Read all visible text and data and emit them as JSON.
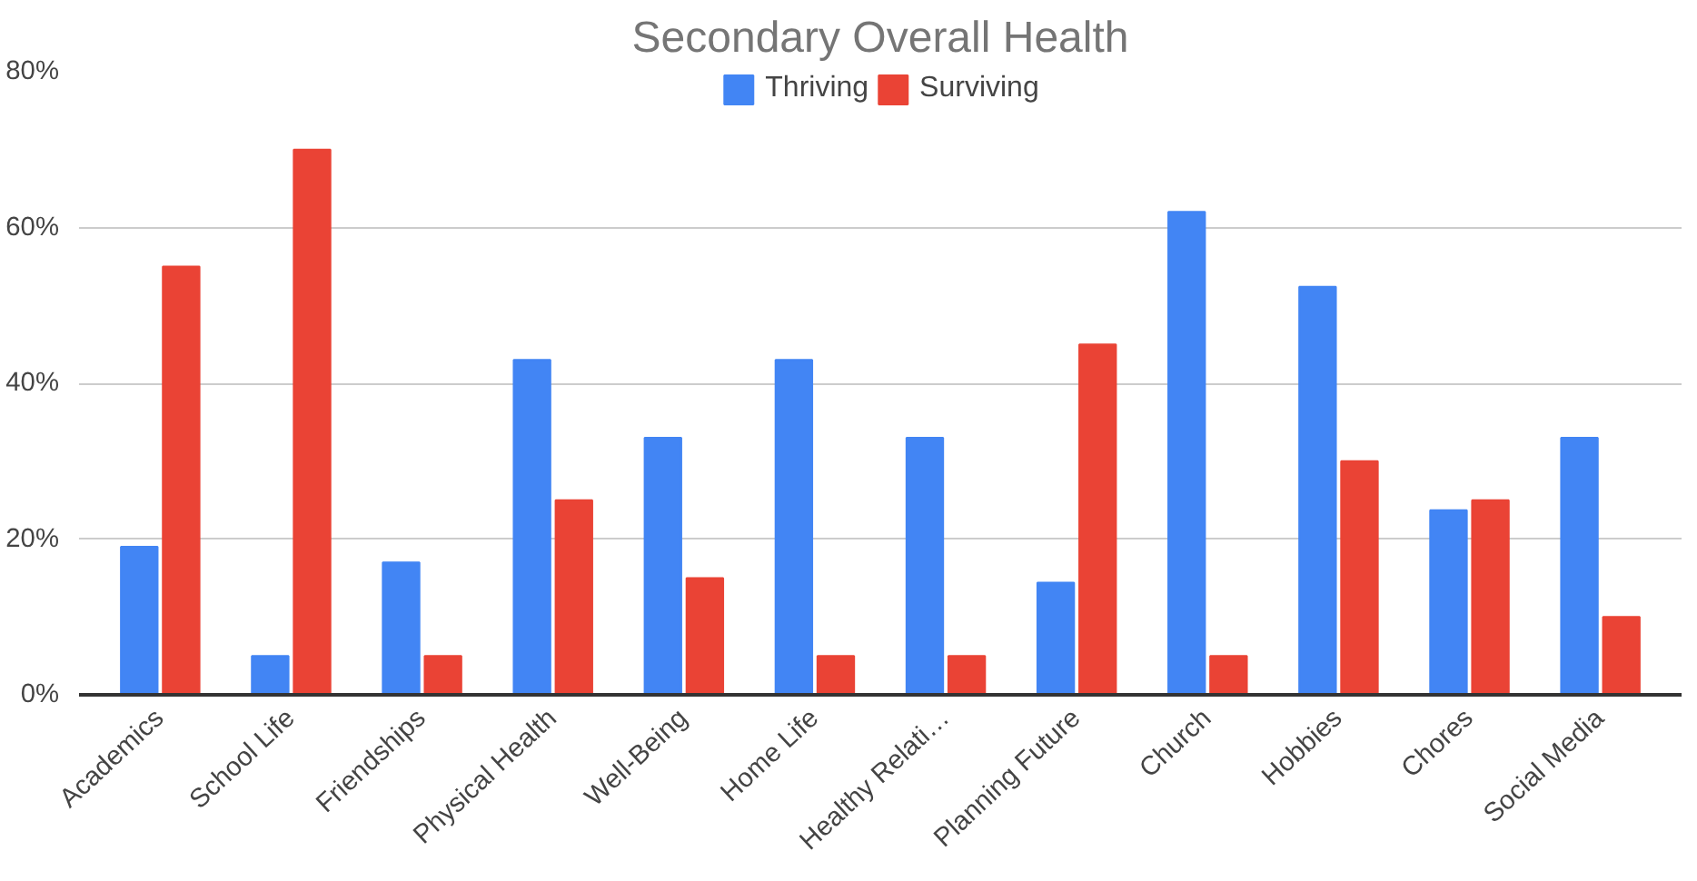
{
  "chart_data": {
    "type": "bar",
    "title": "Secondary Overall Health",
    "categories": [
      "Academics",
      "School Life",
      "Friendships",
      "Physical Health",
      "Well-Being",
      "Home Life",
      "Healthy Relati…",
      "Planning Future",
      "Church",
      "Hobbies",
      "Chores",
      "Social Media"
    ],
    "series": [
      {
        "name": "Thriving",
        "color": "#4285f4",
        "values": [
          19,
          5,
          17,
          43,
          33,
          43,
          33,
          14.4,
          62,
          52.4,
          23.7,
          33
        ]
      },
      {
        "name": "Surviving",
        "color": "#ea4335",
        "values": [
          55,
          70,
          5,
          25,
          15,
          5,
          5,
          45,
          5,
          30,
          25,
          10
        ]
      }
    ],
    "ylim": [
      0,
      80
    ],
    "yticks": [
      {
        "value": 0,
        "label": "0%"
      },
      {
        "value": 20,
        "label": "20%"
      },
      {
        "value": 40,
        "label": "40%"
      },
      {
        "value": 60,
        "label": "60%"
      },
      {
        "value": 80,
        "label": "80%"
      }
    ],
    "grid": "y",
    "legend": "top"
  }
}
